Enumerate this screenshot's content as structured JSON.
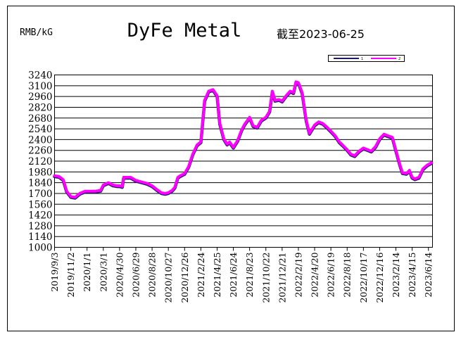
{
  "title": "DyFe Metal",
  "unit_label": "RMB/kG",
  "subtitle": "截至2023-06-25",
  "colors": {
    "series_shadow": "#1a1a66",
    "series_main": "#ff00ff"
  },
  "chart_data": {
    "type": "line",
    "title": "DyFe Metal",
    "ylabel": "RMB/kG",
    "ylim": [
      1000,
      3240
    ],
    "yticks": [
      "3240",
      "3100",
      "2960",
      "2820",
      "2680",
      "2540",
      "2400",
      "2260",
      "2120",
      "1980",
      "1840",
      "1700",
      "1560",
      "1420",
      "1280",
      "1140",
      "1000"
    ],
    "xticks": [
      "2019/9/3",
      "2019/11/2",
      "2020/1/1",
      "2020/3/1",
      "2020/4/30",
      "2020/6/29",
      "2020/8/28",
      "2020/10/27",
      "2020/12/26",
      "2021/2/24",
      "2021/4/25",
      "2021/6/24",
      "2021/8/23",
      "2021/10/22",
      "2021/12/21",
      "2022/2/19",
      "2022/4/20",
      "2022/6/19",
      "2022/8/18",
      "2022/10/17",
      "2022/12/16",
      "2023/2/14",
      "2023/4/15",
      "2023/6/14"
    ],
    "grid": true,
    "legend": {
      "placement": "top-right",
      "entries": [
        "1",
        "2"
      ]
    },
    "series": [
      {
        "values": [
          [
            "2019/9/3",
            1920
          ],
          [
            "2019/9/20",
            1910
          ],
          [
            "2019/10/5",
            1870
          ],
          [
            "2019/10/18",
            1720
          ],
          [
            "2019/11/2",
            1650
          ],
          [
            "2019/11/18",
            1640
          ],
          [
            "2019/12/5",
            1690
          ],
          [
            "2019/12/25",
            1720
          ],
          [
            "2020/1/10",
            1720
          ],
          [
            "2020/2/1",
            1720
          ],
          [
            "2020/2/20",
            1730
          ],
          [
            "2020/3/1",
            1800
          ],
          [
            "2020/3/20",
            1830
          ],
          [
            "2020/4/5",
            1800
          ],
          [
            "2020/4/20",
            1790
          ],
          [
            "2020/4/30",
            1790
          ],
          [
            "2020/5/10",
            1780
          ],
          [
            "2020/5/15",
            1900
          ],
          [
            "2020/6/10",
            1900
          ],
          [
            "2020/6/29",
            1860
          ],
          [
            "2020/7/20",
            1840
          ],
          [
            "2020/8/10",
            1820
          ],
          [
            "2020/8/28",
            1790
          ],
          [
            "2020/9/15",
            1740
          ],
          [
            "2020/10/1",
            1700
          ],
          [
            "2020/10/15",
            1690
          ],
          [
            "2020/10/27",
            1700
          ],
          [
            "2020/11/10",
            1730
          ],
          [
            "2020/11/20",
            1770
          ],
          [
            "2020/12/1",
            1900
          ],
          [
            "2020/12/10",
            1920
          ],
          [
            "2020/12/26",
            1950
          ],
          [
            "2021/1/10",
            2040
          ],
          [
            "2021/1/25",
            2200
          ],
          [
            "2021/2/10",
            2320
          ],
          [
            "2021/2/24",
            2360
          ],
          [
            "2021/3/10",
            2900
          ],
          [
            "2021/3/25",
            3020
          ],
          [
            "2021/4/10",
            3040
          ],
          [
            "2021/4/25",
            2960
          ],
          [
            "2021/5/5",
            2600
          ],
          [
            "2021/5/20",
            2400
          ],
          [
            "2021/6/1",
            2330
          ],
          [
            "2021/6/10",
            2360
          ],
          [
            "2021/6/24",
            2290
          ],
          [
            "2021/7/10",
            2380
          ],
          [
            "2021/7/25",
            2520
          ],
          [
            "2021/8/5",
            2590
          ],
          [
            "2021/8/23",
            2680
          ],
          [
            "2021/9/5",
            2570
          ],
          [
            "2021/9/20",
            2550
          ],
          [
            "2021/10/5",
            2640
          ],
          [
            "2021/10/22",
            2680
          ],
          [
            "2021/11/5",
            2760
          ],
          [
            "2021/11/15",
            3020
          ],
          [
            "2021/11/25",
            2900
          ],
          [
            "2021/12/10",
            2910
          ],
          [
            "2021/12/21",
            2890
          ],
          [
            "2022/1/5",
            2960
          ],
          [
            "2022/1/20",
            3020
          ],
          [
            "2022/2/1",
            3000
          ],
          [
            "2022/2/10",
            3140
          ],
          [
            "2022/2/19",
            3130
          ],
          [
            "2022/3/5",
            3000
          ],
          [
            "2022/3/20",
            2640
          ],
          [
            "2022/4/1",
            2470
          ],
          [
            "2022/4/20",
            2580
          ],
          [
            "2022/5/5",
            2620
          ],
          [
            "2022/5/20",
            2600
          ],
          [
            "2022/6/5",
            2550
          ],
          [
            "2022/6/19",
            2500
          ],
          [
            "2022/7/5",
            2440
          ],
          [
            "2022/7/20",
            2360
          ],
          [
            "2022/8/1",
            2320
          ],
          [
            "2022/8/18",
            2260
          ],
          [
            "2022/9/1",
            2200
          ],
          [
            "2022/9/15",
            2180
          ],
          [
            "2022/10/1",
            2240
          ],
          [
            "2022/10/17",
            2280
          ],
          [
            "2022/11/1",
            2260
          ],
          [
            "2022/11/15",
            2240
          ],
          [
            "2022/12/1",
            2300
          ],
          [
            "2022/12/16",
            2400
          ],
          [
            "2023/1/1",
            2460
          ],
          [
            "2023/1/15",
            2440
          ],
          [
            "2023/2/1",
            2420
          ],
          [
            "2023/2/14",
            2250
          ],
          [
            "2023/3/1",
            2060
          ],
          [
            "2023/3/10",
            1960
          ],
          [
            "2023/3/25",
            1950
          ],
          [
            "2023/4/5",
            1990
          ],
          [
            "2023/4/15",
            1900
          ],
          [
            "2023/4/25",
            1880
          ],
          [
            "2023/5/10",
            1900
          ],
          [
            "2023/5/25",
            2010
          ],
          [
            "2023/6/10",
            2060
          ],
          [
            "2023/6/25",
            2090
          ]
        ]
      },
      {
        "values": [
          [
            "2019/9/3",
            1930
          ],
          [
            "2019/9/20",
            1920
          ],
          [
            "2019/10/5",
            1880
          ],
          [
            "2019/10/18",
            1730
          ],
          [
            "2019/11/2",
            1660
          ],
          [
            "2019/11/18",
            1650
          ],
          [
            "2019/12/5",
            1700
          ],
          [
            "2019/12/25",
            1730
          ],
          [
            "2020/1/10",
            1730
          ],
          [
            "2020/2/1",
            1730
          ],
          [
            "2020/2/20",
            1740
          ],
          [
            "2020/3/1",
            1810
          ],
          [
            "2020/3/20",
            1840
          ],
          [
            "2020/4/5",
            1810
          ],
          [
            "2020/4/20",
            1800
          ],
          [
            "2020/4/30",
            1800
          ],
          [
            "2020/5/10",
            1790
          ],
          [
            "2020/5/15",
            1910
          ],
          [
            "2020/6/10",
            1910
          ],
          [
            "2020/6/29",
            1870
          ],
          [
            "2020/7/20",
            1850
          ],
          [
            "2020/8/10",
            1830
          ],
          [
            "2020/8/28",
            1800
          ],
          [
            "2020/9/15",
            1750
          ],
          [
            "2020/10/1",
            1710
          ],
          [
            "2020/10/15",
            1700
          ],
          [
            "2020/10/27",
            1710
          ],
          [
            "2020/11/10",
            1740
          ],
          [
            "2020/11/20",
            1780
          ],
          [
            "2020/12/1",
            1910
          ],
          [
            "2020/12/10",
            1930
          ],
          [
            "2020/12/26",
            1960
          ],
          [
            "2021/1/10",
            2050
          ],
          [
            "2021/1/25",
            2210
          ],
          [
            "2021/2/10",
            2330
          ],
          [
            "2021/2/24",
            2370
          ],
          [
            "2021/3/10",
            2910
          ],
          [
            "2021/3/25",
            3030
          ],
          [
            "2021/4/10",
            3050
          ],
          [
            "2021/4/25",
            2970
          ],
          [
            "2021/5/5",
            2610
          ],
          [
            "2021/5/20",
            2410
          ],
          [
            "2021/6/1",
            2340
          ],
          [
            "2021/6/10",
            2370
          ],
          [
            "2021/6/24",
            2300
          ],
          [
            "2021/7/10",
            2390
          ],
          [
            "2021/7/25",
            2530
          ],
          [
            "2021/8/5",
            2600
          ],
          [
            "2021/8/23",
            2690
          ],
          [
            "2021/9/5",
            2580
          ],
          [
            "2021/9/20",
            2560
          ],
          [
            "2021/10/5",
            2650
          ],
          [
            "2021/10/22",
            2690
          ],
          [
            "2021/11/5",
            2770
          ],
          [
            "2021/11/15",
            3030
          ],
          [
            "2021/11/25",
            2910
          ],
          [
            "2021/12/10",
            2920
          ],
          [
            "2021/12/21",
            2900
          ],
          [
            "2022/1/5",
            2970
          ],
          [
            "2022/1/20",
            3030
          ],
          [
            "2022/2/1",
            3010
          ],
          [
            "2022/2/10",
            3150
          ],
          [
            "2022/2/19",
            3140
          ],
          [
            "2022/3/5",
            3010
          ],
          [
            "2022/3/20",
            2650
          ],
          [
            "2022/4/1",
            2480
          ],
          [
            "2022/4/20",
            2590
          ],
          [
            "2022/5/5",
            2630
          ],
          [
            "2022/5/20",
            2610
          ],
          [
            "2022/6/5",
            2560
          ],
          [
            "2022/6/19",
            2510
          ],
          [
            "2022/7/5",
            2450
          ],
          [
            "2022/7/20",
            2370
          ],
          [
            "2022/8/1",
            2330
          ],
          [
            "2022/8/18",
            2270
          ],
          [
            "2022/9/1",
            2210
          ],
          [
            "2022/9/15",
            2190
          ],
          [
            "2022/10/1",
            2250
          ],
          [
            "2022/10/17",
            2290
          ],
          [
            "2022/11/1",
            2270
          ],
          [
            "2022/11/15",
            2250
          ],
          [
            "2022/12/1",
            2310
          ],
          [
            "2022/12/16",
            2410
          ],
          [
            "2023/1/1",
            2470
          ],
          [
            "2023/1/15",
            2450
          ],
          [
            "2023/2/1",
            2430
          ],
          [
            "2023/2/14",
            2260
          ],
          [
            "2023/3/1",
            2070
          ],
          [
            "2023/3/10",
            1970
          ],
          [
            "2023/3/25",
            1960
          ],
          [
            "2023/4/5",
            2000
          ],
          [
            "2023/4/15",
            1910
          ],
          [
            "2023/4/25",
            1890
          ],
          [
            "2023/5/10",
            1910
          ],
          [
            "2023/5/25",
            2020
          ],
          [
            "2023/6/10",
            2070
          ],
          [
            "2023/6/25",
            2100
          ]
        ]
      }
    ]
  }
}
